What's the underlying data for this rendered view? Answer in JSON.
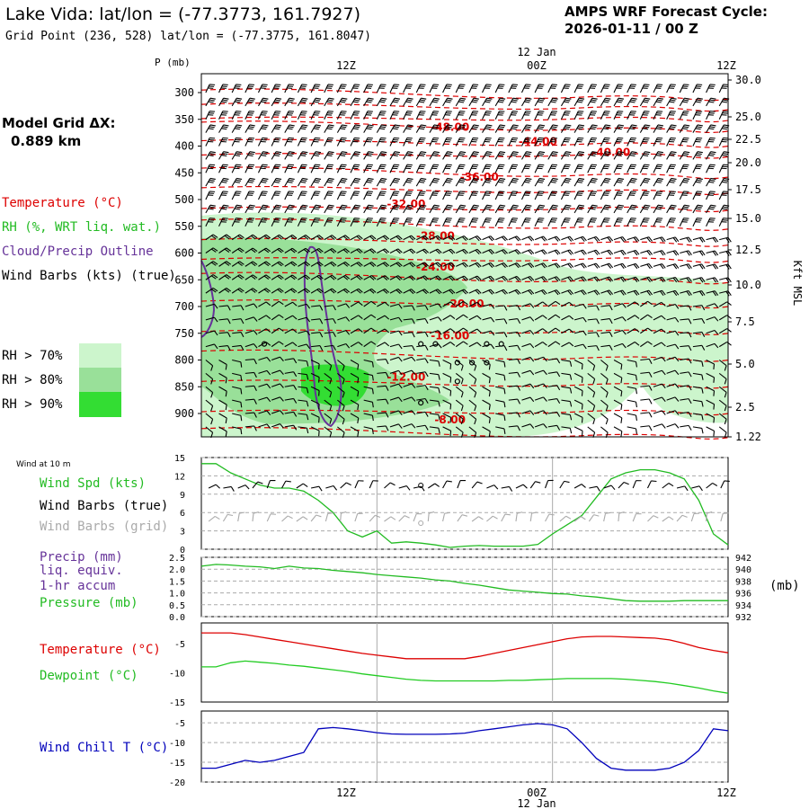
{
  "header": {
    "title": "Lake Vida:  lat/lon = (-77.3773, 161.7927)",
    "grid_point": "Grid Point (236, 528) lat/lon = (-77.3775, 161.8047)",
    "cycle_label": "AMPS WRF Forecast Cycle:",
    "cycle_value": "2026-01-11 / 00  Z"
  },
  "model": {
    "label": "Model Grid ΔX:",
    "value": "0.889 km"
  },
  "legend": {
    "temperature": "Temperature (°C)",
    "rh": "RH (%, WRT liq. wat.)",
    "cloud": "Cloud/Precip Outline",
    "wind": "Wind Barbs (kts) (true)",
    "rh70": "RH > 70%",
    "rh80": "RH > 80%",
    "rh90": "RH > 90%"
  },
  "colors": {
    "temperature": "#dd0000",
    "rh": "#22bb22",
    "cloud": "#663399",
    "pressure": "#22bb22",
    "dewpoint": "#22cc22",
    "windchill": "#0000bb",
    "rh70": "#ccf5cc",
    "rh80": "#99e099",
    "rh90": "#33dd33",
    "grid": "#aaaaaa"
  },
  "time_axis": {
    "top_labels": [
      "12Z",
      "00Z",
      "12Z"
    ],
    "date_label": "12 Jan",
    "bottom_labels": [
      "12Z",
      "00Z",
      "12Z"
    ],
    "bottom_date": "12 Jan"
  },
  "chart_data": [
    {
      "type": "contour",
      "name": "vertical-profile",
      "ylabel": "P (mb)",
      "right_label": "Kft MSL",
      "pressure_ticks": [
        "300",
        "350",
        "400",
        "450",
        "500",
        "550",
        "600",
        "650",
        "700",
        "750",
        "800",
        "850",
        "900"
      ],
      "height_ticks": [
        "30.0",
        "25.0",
        "22.5",
        "20.0",
        "17.5",
        "15.0",
        "12.5",
        "10.0",
        "7.5",
        "5.0",
        "2.5",
        "1.22"
      ],
      "temperature_labels": [
        {
          "label": "-48.00",
          "hour": 17,
          "p": 365
        },
        {
          "label": "-44.00",
          "hour": 23,
          "p": 392
        },
        {
          "label": "-40.00",
          "hour": 28,
          "p": 412
        },
        {
          "label": "-36.00",
          "hour": 19,
          "p": 458
        },
        {
          "label": "-32.00",
          "hour": 14,
          "p": 508
        },
        {
          "label": "-28.00",
          "hour": 16,
          "p": 568
        },
        {
          "label": "-24.00",
          "hour": 16,
          "p": 626
        },
        {
          "label": "-20.00",
          "hour": 18,
          "p": 695
        },
        {
          "label": "-16.00",
          "hour": 17,
          "p": 755
        },
        {
          "label": "-12.00",
          "hour": 14,
          "p": 832
        },
        {
          "label": "-8.00",
          "hour": 17,
          "p": 912
        }
      ]
    },
    {
      "type": "line",
      "name": "wind-10m",
      "title": "Wind at 10 m",
      "labels": [
        "Wind Spd (kts)",
        "Wind Barbs (true)",
        "Wind Barbs (grid)"
      ],
      "yticks": [
        "0",
        "3",
        "6",
        "9",
        "12",
        "15"
      ],
      "ylim": [
        0,
        15
      ],
      "hours": [
        0,
        1,
        2,
        3,
        4,
        5,
        6,
        7,
        8,
        9,
        10,
        11,
        12,
        13,
        14,
        15,
        16,
        17,
        18,
        19,
        20,
        21,
        22,
        23,
        24,
        25,
        26,
        27,
        28,
        29,
        30,
        31,
        32,
        33,
        34,
        35,
        36
      ],
      "wind_speed": [
        14,
        14,
        12.5,
        11.5,
        10.5,
        10,
        10,
        9.5,
        8,
        6,
        3,
        2,
        3,
        1,
        1.2,
        1,
        0.7,
        0.3,
        0.5,
        0.6,
        0.5,
        0.5,
        0.5,
        0.8,
        2.5,
        4,
        5.5,
        8.5,
        11.5,
        12.5,
        13,
        13,
        12.5,
        11.5,
        8,
        2.5,
        0.7
      ]
    },
    {
      "type": "line",
      "name": "precip-pressure",
      "labels": [
        "Precip (mm)",
        "liq. equiv.",
        "1-hr accum",
        "Pressure (mb)"
      ],
      "left_ticks": [
        "0.0",
        "0.5",
        "1.0",
        "1.5",
        "2.0",
        "2.5"
      ],
      "right_ticks": [
        "932",
        "934",
        "936",
        "938",
        "940",
        "942"
      ],
      "right_unit": "(mb)",
      "ylim": [
        932,
        942
      ],
      "hours": [
        0,
        1,
        2,
        3,
        4,
        5,
        6,
        7,
        8,
        9,
        10,
        11,
        12,
        13,
        14,
        15,
        16,
        17,
        18,
        19,
        20,
        21,
        22,
        23,
        24,
        25,
        26,
        27,
        28,
        29,
        30,
        31,
        32,
        33,
        34,
        35,
        36
      ],
      "pressure": [
        940.5,
        940.8,
        940.7,
        940.5,
        940.4,
        940.1,
        940.5,
        940.2,
        940.1,
        939.8,
        939.6,
        939.4,
        939.1,
        938.9,
        938.7,
        938.5,
        938.2,
        938.0,
        937.6,
        937.3,
        936.9,
        936.5,
        936.3,
        936.1,
        935.9,
        935.8,
        935.5,
        935.3,
        935.0,
        934.7,
        934.6,
        934.6,
        934.6,
        934.7,
        934.7,
        934.7,
        934.7
      ]
    },
    {
      "type": "line",
      "name": "temperature-dewpoint",
      "labels": [
        "Temperature (°C)",
        "Dewpoint (°C)"
      ],
      "yticks": [
        "-15",
        "-10",
        "-5"
      ],
      "ylim": [
        -15,
        -1.5
      ],
      "hours": [
        0,
        1,
        2,
        3,
        4,
        5,
        6,
        7,
        8,
        9,
        10,
        11,
        12,
        13,
        14,
        15,
        16,
        17,
        18,
        19,
        20,
        21,
        22,
        23,
        24,
        25,
        26,
        27,
        28,
        29,
        30,
        31,
        32,
        33,
        34,
        35,
        36
      ],
      "temperature": [
        -3.2,
        -3.2,
        -3.2,
        -3.5,
        -3.9,
        -4.3,
        -4.7,
        -5.1,
        -5.5,
        -5.9,
        -6.3,
        -6.7,
        -7.0,
        -7.3,
        -7.6,
        -7.6,
        -7.6,
        -7.6,
        -7.6,
        -7.2,
        -6.7,
        -6.2,
        -5.7,
        -5.2,
        -4.7,
        -4.2,
        -3.9,
        -3.8,
        -3.8,
        -3.9,
        -4.0,
        -4.1,
        -4.4,
        -5.0,
        -5.7,
        -6.2,
        -6.6
      ],
      "dewpoint": [
        -9.0,
        -9.0,
        -8.3,
        -8.0,
        -8.2,
        -8.4,
        -8.7,
        -8.9,
        -9.2,
        -9.5,
        -9.8,
        -10.2,
        -10.5,
        -10.8,
        -11.1,
        -11.3,
        -11.4,
        -11.4,
        -11.4,
        -11.4,
        -11.4,
        -11.3,
        -11.3,
        -11.2,
        -11.1,
        -11.0,
        -11.0,
        -11.0,
        -11.0,
        -11.1,
        -11.3,
        -11.5,
        -11.8,
        -12.2,
        -12.6,
        -13.1,
        -13.5
      ]
    },
    {
      "type": "line",
      "name": "wind-chill",
      "labels": [
        "Wind Chill T (°C)"
      ],
      "yticks": [
        "-20",
        "-15",
        "-10",
        "-5"
      ],
      "ylim": [
        -20,
        -2
      ],
      "hours": [
        0,
        1,
        2,
        3,
        4,
        5,
        6,
        7,
        8,
        9,
        10,
        11,
        12,
        13,
        14,
        15,
        16,
        17,
        18,
        19,
        20,
        21,
        22,
        23,
        24,
        25,
        26,
        27,
        28,
        29,
        30,
        31,
        32,
        33,
        34,
        35,
        36
      ],
      "windchill": [
        -16.5,
        -16.5,
        -15.5,
        -14.5,
        -15,
        -14.5,
        -13.5,
        -12.5,
        -6.5,
        -6.2,
        -6.5,
        -7,
        -7.5,
        -7.8,
        -7.9,
        -7.9,
        -7.9,
        -7.8,
        -7.6,
        -7,
        -6.5,
        -6,
        -5.5,
        -5.2,
        -5.5,
        -6.5,
        -10,
        -14,
        -16.5,
        -17,
        -17,
        -17,
        -16.5,
        -15,
        -12,
        -6.5,
        -7
      ]
    }
  ]
}
